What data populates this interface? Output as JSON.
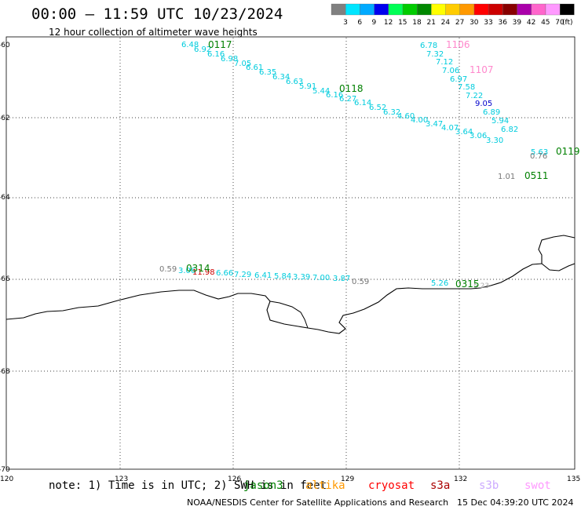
{
  "header": {
    "title": "00:00 – 11:59 UTC 10/23/2024",
    "subtitle": "12 hour collection of altimeter wave heights"
  },
  "legend": {
    "unit": "(ft)",
    "colors": [
      "#808080",
      "#00e5ff",
      "#00aaff",
      "#0000ee",
      "#00ff55",
      "#00cc00",
      "#008800",
      "#ffff00",
      "#ffcc00",
      "#ff9900",
      "#ff0000",
      "#cc0000",
      "#880000",
      "#aa00aa",
      "#ff66cc",
      "#ff99ff",
      "#000000"
    ],
    "labels": [
      "3",
      "6",
      "9",
      "12",
      "15",
      "18",
      "21",
      "24",
      "27",
      "30",
      "33",
      "36",
      "39",
      "42",
      "45",
      "70"
    ]
  },
  "axes": {
    "lon_labels": [
      "120",
      "123",
      "126",
      "129",
      "132",
      "135"
    ],
    "lat_labels": [
      "-60",
      "-62",
      "-64",
      "-66",
      "-68",
      "-70"
    ]
  },
  "tracks": {
    "upper_left": {
      "id": "0117",
      "id_color": "#008000",
      "values_color": "#00ccdd",
      "values": [
        "6.48",
        "6.92",
        "6.16",
        "6.98",
        "7.05",
        "6.61",
        "6.35",
        "6.34",
        "6.63",
        "5.91",
        "5.44",
        "6.16",
        "6.27",
        "6.14",
        "6.52",
        "6.32",
        "4.60",
        "4.00",
        "3.47",
        "4.07",
        "3.64",
        "3.06",
        "3.30"
      ]
    },
    "upper_mid_id": "0118",
    "upper_right": {
      "id": "1106",
      "id_color": "#ff88cc",
      "values": [
        "6.78",
        "7.32",
        "7.12",
        "7.06",
        "6.97",
        "7.58",
        "7.22",
        "9.05",
        "6.89",
        "5.94",
        "6.82"
      ]
    },
    "upper_right_id2": "1107",
    "far_right": {
      "id": "0119",
      "values": [
        "5.63",
        "0.76",
        "1.01"
      ]
    },
    "far_right_id2": "0511",
    "lower": {
      "id": "0314",
      "values": [
        "0.59",
        "3.06",
        "11.98",
        "6.66",
        "7.29",
        "6.41",
        "5.84",
        "3.39",
        "7.00",
        "3.87",
        "0.59"
      ],
      "values_colors": [
        "#777777",
        "#00ccdd",
        "#cc0000",
        "#00ccdd",
        "#00ccdd",
        "#00ccdd",
        "#00ccdd",
        "#00ccdd",
        "#00ccdd",
        "#00ccdd",
        "#777777"
      ]
    },
    "lower_right": {
      "id": "0315",
      "values": [
        "5.26",
        "5.23"
      ]
    }
  },
  "footer": {
    "note": "note: 1) Time is in UTC; 2) SWH is in feet",
    "missions": [
      {
        "name": "jason3",
        "color": "#008000"
      },
      {
        "name": "altika",
        "color": "#ff9900"
      },
      {
        "name": "cryosat",
        "color": "#ff0000"
      },
      {
        "name": "s3a",
        "color": "#aa0000"
      },
      {
        "name": "s3b",
        "color": "#ccaaff"
      },
      {
        "name": "swot",
        "color": "#ff99ff"
      }
    ],
    "credit": "NOAA/NESDIS Center for Satellite Applications and Research",
    "generated": "15 Dec 04:39:20 UTC 2024"
  }
}
